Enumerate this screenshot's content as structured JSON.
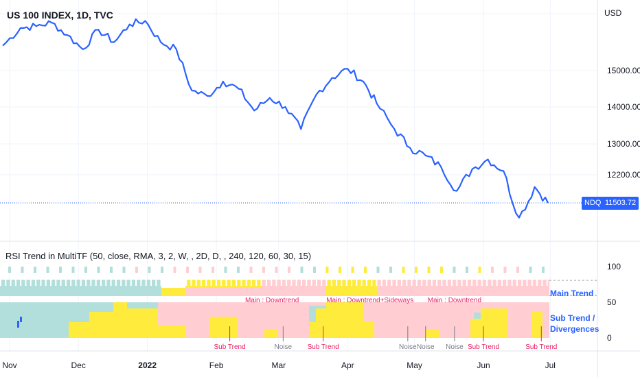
{
  "header": {
    "title": "US 100 INDEX, 1D, TVC",
    "currency": "USD"
  },
  "indicator": {
    "title": "RSI Trend in MultiTF (50, close, RMA, 3, 2, W, , 2D, D, , 240, 120, 60, 30, 15)",
    "ticks": [
      "100",
      "50",
      "0"
    ],
    "main_trend_label": "Main Trend",
    "sub_trend_label": [
      "Sub Trend /",
      "Divergences"
    ],
    "main_trend_annotations": [
      {
        "text": "Main : Downtrend",
        "x": "2022-02-26"
      },
      {
        "text": "Main : Downtrend+Sideways",
        "x": "2022-04-11"
      },
      {
        "text": "Main : Downtrend",
        "x": "2022-05-19"
      }
    ],
    "sub_trend_annotations": [
      {
        "text": "Sub Trend",
        "x": "2022-02-07",
        "color": "#e91e63"
      },
      {
        "text": "Noise",
        "x": "2022-03-03",
        "color": "#787b86"
      },
      {
        "text": "Sub Trend",
        "x": "2022-03-21",
        "color": "#e91e63"
      },
      {
        "text": "Noise",
        "x": "2022-04-28",
        "color": "#787b86"
      },
      {
        "text": "Noise",
        "x": "2022-05-06",
        "color": "#787b86"
      },
      {
        "text": "Noise",
        "x": "2022-05-19",
        "color": "#787b86"
      },
      {
        "text": "Sub Trend",
        "x": "2022-06-01",
        "color": "#e91e63"
      },
      {
        "text": "Sub Trend",
        "x": "2022-06-27",
        "color": "#e91e63"
      }
    ]
  },
  "colors": {
    "line": "#2962ff",
    "bull": "#b2dfdb",
    "bear": "#ffcdd2",
    "neutral": "#ffeb3b",
    "grid": "#f0f3fa",
    "text": "#131722"
  },
  "chart_data": {
    "type": "line",
    "series": [
      {
        "name": "NDQ",
        "x": [
          "2021-10-28",
          "2021-11-05",
          "2021-11-12",
          "2021-11-19",
          "2021-11-26",
          "2021-12-03",
          "2021-12-10",
          "2021-12-17",
          "2021-12-24",
          "2021-12-31",
          "2022-01-07",
          "2022-01-14",
          "2022-01-21",
          "2022-01-28",
          "2022-02-04",
          "2022-02-11",
          "2022-02-18",
          "2022-02-25",
          "2022-03-04",
          "2022-03-11",
          "2022-03-18",
          "2022-03-25",
          "2022-04-01",
          "2022-04-08",
          "2022-04-14",
          "2022-04-22",
          "2022-04-29",
          "2022-05-06",
          "2022-05-13",
          "2022-05-20",
          "2022-05-27",
          "2022-06-03",
          "2022-06-10",
          "2022-06-17",
          "2022-06-24",
          "2022-06-30"
        ],
        "y": [
          15700,
          16200,
          16250,
          16350,
          16000,
          15600,
          16150,
          15800,
          16300,
          16400,
          15800,
          15600,
          14450,
          14300,
          14700,
          14500,
          13900,
          14250,
          14000,
          13400,
          14350,
          14800,
          15050,
          14700,
          14100,
          13400,
          12900,
          12700,
          12400,
          11800,
          12350,
          12600,
          12300,
          11050,
          11900,
          11503.72
        ]
      }
    ],
    "last_value_label": "NDQ",
    "last_value": "11503.72",
    "y_ticks": [
      "15000.00",
      "14000.00",
      "13000.00",
      "12200.00"
    ],
    "x_ticks": [
      "Nov",
      "Dec",
      "2022",
      "Feb",
      "Mar",
      "Apr",
      "May",
      "Jun",
      "Jul"
    ],
    "ylabel": "USD"
  }
}
